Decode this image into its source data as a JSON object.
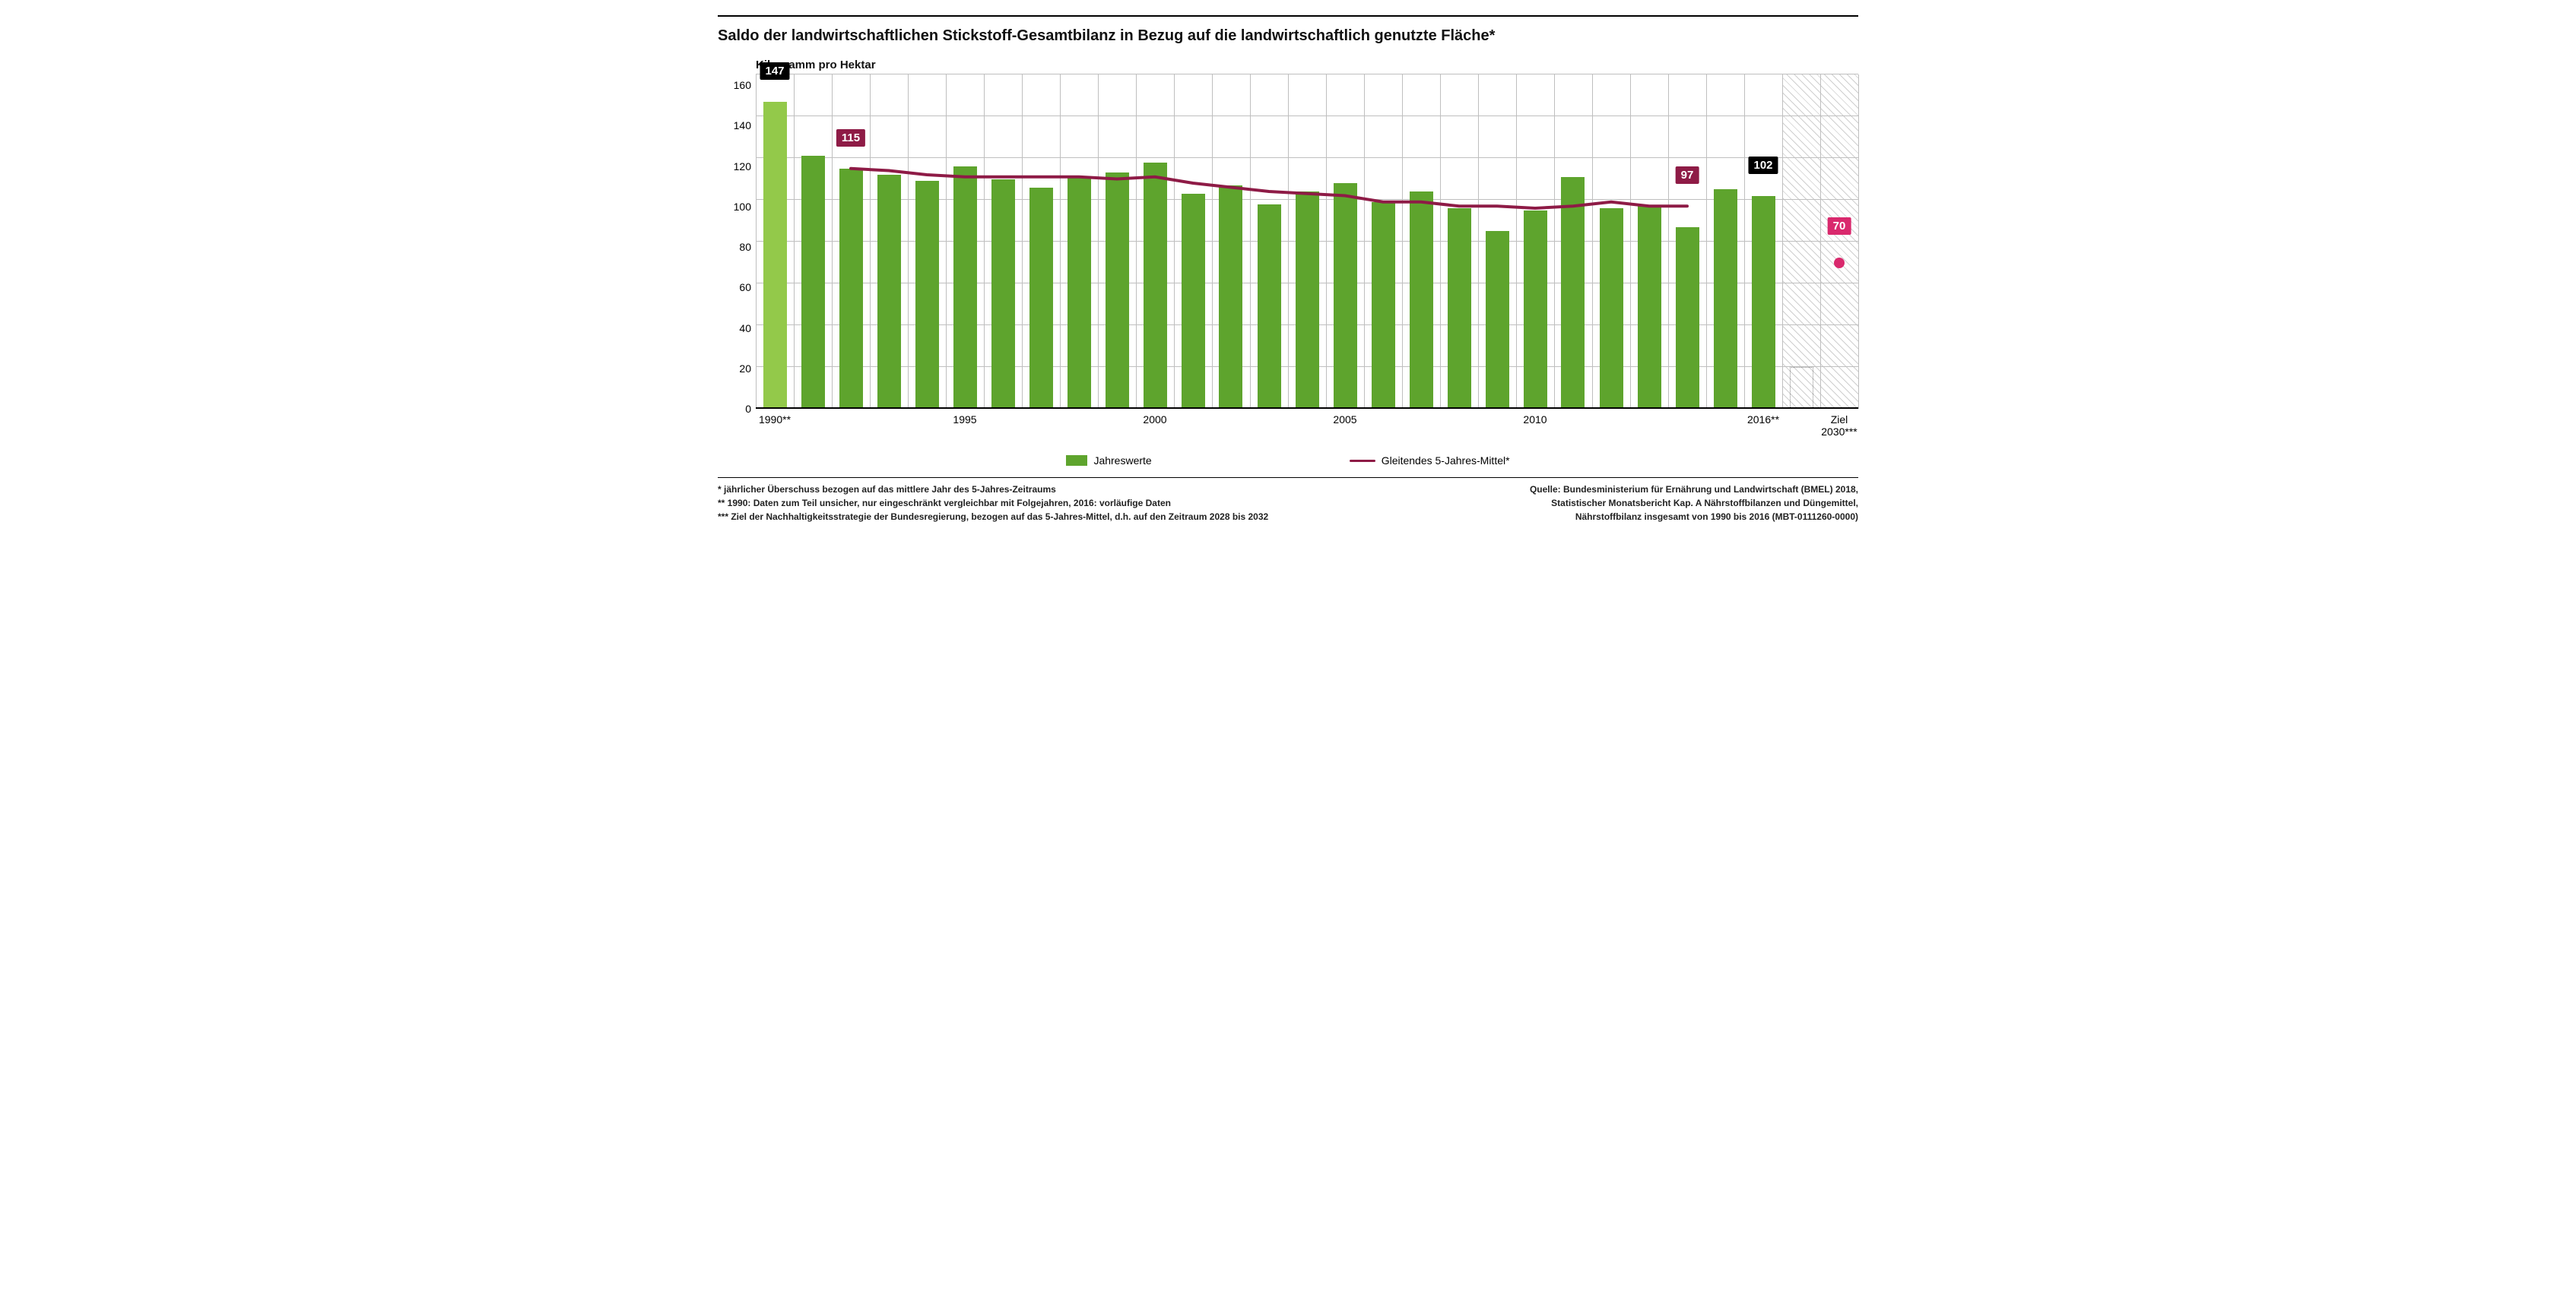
{
  "title": "Saldo der landwirtschaftlichen Stickstoff-Gesamtbilanz in Bezug auf die landwirtschaftlich genutzte Fläche*",
  "ylabel": "Kilogramm pro Hektar",
  "y": {
    "min": 0,
    "max": 160,
    "step": 20
  },
  "colors": {
    "bar": "#5ea42d",
    "bar_light": "#93c94a",
    "grid": "#bfbfbf",
    "line": "#8e1b46",
    "tag_black_bg": "#000000",
    "tag_black_fg": "#ffffff",
    "tag_line_bg": "#8e1b46",
    "tag_line_fg": "#ffffff",
    "ziel_bg": "#d9296d",
    "ziel_fg": "#ffffff",
    "baseline": "#000000"
  },
  "bars": [
    {
      "year": "1990**",
      "value": 147,
      "light": true,
      "xlabel": "1990**"
    },
    {
      "year": "1991",
      "value": 121
    },
    {
      "year": "1992",
      "value": 115
    },
    {
      "year": "1993",
      "value": 112
    },
    {
      "year": "1994",
      "value": 109
    },
    {
      "year": "1995",
      "value": 116,
      "xlabel": "1995"
    },
    {
      "year": "1996",
      "value": 110
    },
    {
      "year": "1997",
      "value": 106
    },
    {
      "year": "1998",
      "value": 111
    },
    {
      "year": "1999",
      "value": 113
    },
    {
      "year": "2000",
      "value": 118,
      "xlabel": "2000"
    },
    {
      "year": "2001",
      "value": 103
    },
    {
      "year": "2002",
      "value": 107
    },
    {
      "year": "2003",
      "value": 98
    },
    {
      "year": "2004",
      "value": 104
    },
    {
      "year": "2005",
      "value": 108,
      "xlabel": "2005"
    },
    {
      "year": "2006",
      "value": 99
    },
    {
      "year": "2007",
      "value": 104
    },
    {
      "year": "2008",
      "value": 96
    },
    {
      "year": "2009",
      "value": 85
    },
    {
      "year": "2010",
      "value": 95,
      "xlabel": "2010"
    },
    {
      "year": "2011",
      "value": 111
    },
    {
      "year": "2012",
      "value": 96
    },
    {
      "year": "2013",
      "value": 97
    },
    {
      "year": "2014",
      "value": 87
    },
    {
      "year": "2015",
      "value": 105
    },
    {
      "year": "2016",
      "value": 102,
      "xlabel": "2016**"
    }
  ],
  "line": {
    "start_index": 2,
    "values": [
      115,
      114,
      112,
      111,
      111,
      111,
      111,
      110,
      111,
      108,
      106,
      104,
      103,
      102,
      99,
      99,
      97,
      97,
      96,
      97,
      99,
      97,
      97
    ]
  },
  "tags": [
    {
      "kind": "bar",
      "index": 0,
      "value": "147",
      "bg": "#000000",
      "fg": "#ffffff"
    },
    {
      "kind": "line",
      "index": 2,
      "value": "115",
      "bg": "#8e1b46",
      "fg": "#ffffff"
    },
    {
      "kind": "line",
      "index": 24,
      "value": "97",
      "bg": "#8e1b46",
      "fg": "#ffffff"
    },
    {
      "kind": "bar",
      "index": 26,
      "value": "102",
      "bg": "#000000",
      "fg": "#ffffff"
    }
  ],
  "ziel": {
    "value": 70,
    "label": "70",
    "xlabel": "Ziel\n2030***",
    "box_height_value": 20
  },
  "layout": {
    "n_slots": 29,
    "bar_slot_width_pct": 3.448,
    "bar_width_ratio": 0.62,
    "hatch_from_slot": 27
  },
  "legend": {
    "bar": "Jahreswerte",
    "line": "Gleitendes 5-Jahres-Mittel*"
  },
  "footnotes_left": [
    "* jährlicher Überschuss bezogen auf das mittlere Jahr des 5-Jahres-Zeitraums",
    "** 1990: Daten zum Teil unsicher, nur eingeschränkt vergleichbar mit Folgejahren, 2016: vorläufige Daten",
    "*** Ziel der Nachhaltigkeitsstrategie der Bundesregierung, bezogen auf das 5-Jahres-Mittel, d.h. auf den Zeitraum 2028 bis 2032"
  ],
  "footnotes_right": [
    "Quelle: Bundesministerium für Ernährung und Landwirtschaft (BMEL) 2018,",
    "Statistischer Monatsbericht Kap. A Nährstoffbilanzen und Düngemittel,",
    "Nährstoffbilanz insgesamt von 1990 bis 2016 (MBT-0111260-0000)"
  ]
}
